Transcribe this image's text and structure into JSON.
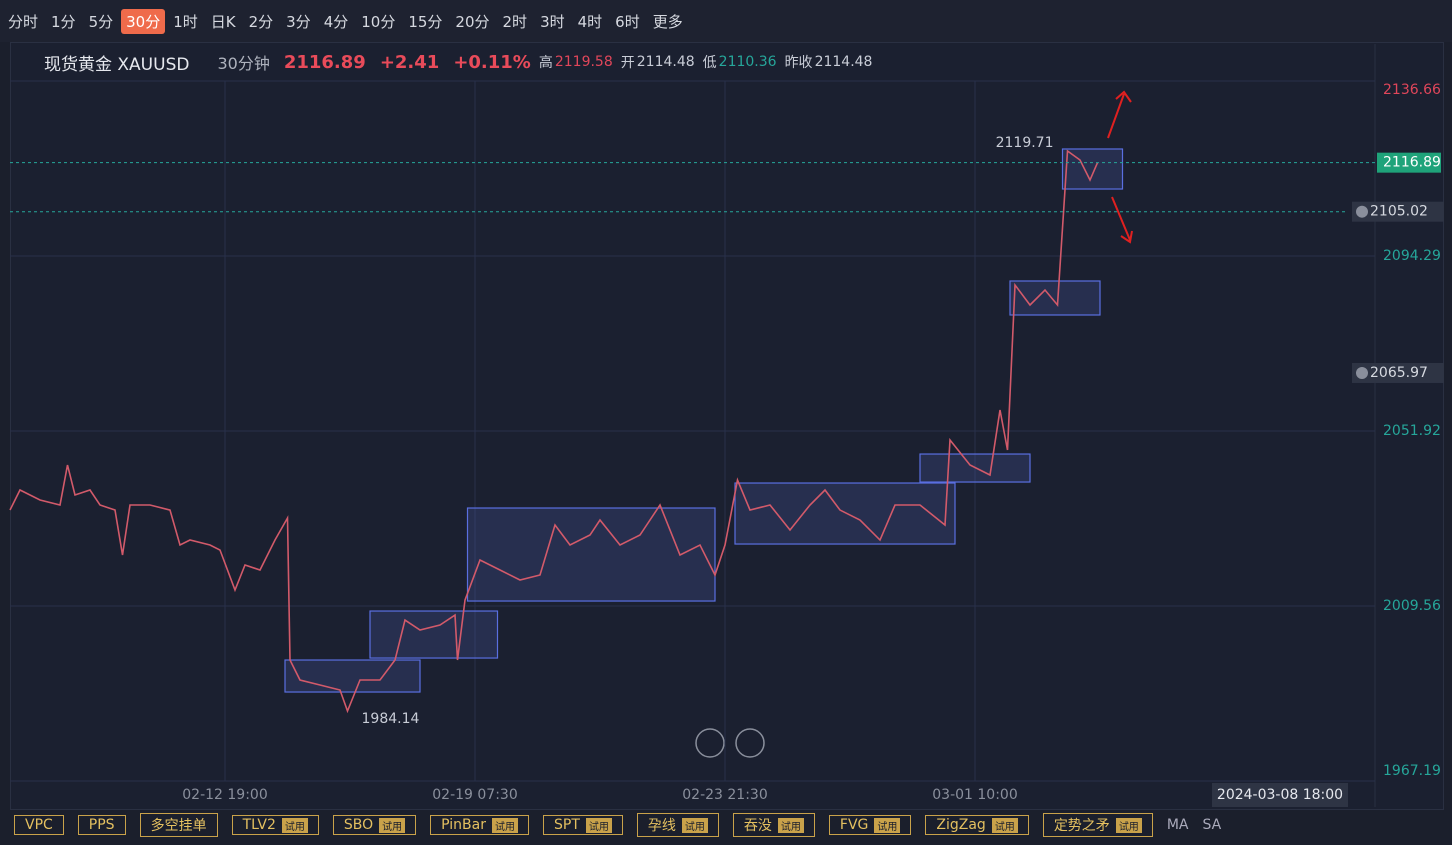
{
  "toolbar": {
    "periods": [
      {
        "text": "分时"
      },
      {
        "text": "1分"
      },
      {
        "text": "5分"
      },
      {
        "text": "30分",
        "active": true
      },
      {
        "text": "1时"
      },
      {
        "text": "日K"
      },
      {
        "text": "2分"
      },
      {
        "text": "3分"
      },
      {
        "text": "4分"
      },
      {
        "text": "10分"
      },
      {
        "text": "15分"
      },
      {
        "text": "20分"
      },
      {
        "text": "2时"
      },
      {
        "text": "3时"
      },
      {
        "text": "4时"
      },
      {
        "text": "6时"
      },
      {
        "text": "更多"
      }
    ]
  },
  "header": {
    "symbol": "现货黄金 XAUUSD",
    "period": "30分钟",
    "price": "2116.89",
    "change": "+2.41",
    "change_pct": "+0.11%",
    "stats": [
      {
        "label": "高",
        "value": "2119.58",
        "color": "#e0465a"
      },
      {
        "label": "开",
        "value": "2114.48",
        "color": "#c8ccd6"
      },
      {
        "label": "低",
        "value": "2110.36",
        "color": "#26a69a"
      },
      {
        "label": "昨收",
        "value": "2114.48",
        "color": "#c8ccd6"
      }
    ]
  },
  "chart_data": {
    "type": "line",
    "color": "#d25a6a",
    "x": [
      0,
      4,
      12,
      20,
      23,
      26,
      32,
      36,
      42,
      45,
      48,
      56,
      64,
      68,
      72,
      80,
      84,
      90,
      94,
      100,
      106,
      111,
      112,
      116,
      124,
      132,
      135,
      140,
      148,
      154,
      158,
      164,
      172,
      178,
      179,
      182,
      188,
      196,
      204,
      212,
      218,
      224,
      232,
      236,
      244,
      252,
      260,
      268,
      276,
      282,
      286,
      291,
      296,
      304,
      312,
      320,
      326,
      332,
      340,
      348,
      354,
      364,
      374,
      376,
      384,
      392,
      396,
      399,
      402,
      408,
      414,
      419,
      423,
      428,
      432,
      435
    ],
    "values": [
      2032.79,
      2037.64,
      2035.22,
      2034.01,
      2043.69,
      2036.43,
      2037.64,
      2034.01,
      2032.79,
      2021.9,
      2034.01,
      2034.01,
      2032.79,
      2024.32,
      2025.53,
      2024.32,
      2023.11,
      2013.43,
      2019.48,
      2018.27,
      2025.53,
      2030.86,
      1996.48,
      1991.64,
      1990.43,
      1989.22,
      1984.14,
      1991.64,
      1991.64,
      1996.48,
      2006.16,
      2003.74,
      2004.95,
      2007.37,
      1996.48,
      2011.0,
      2020.69,
      2018.27,
      2015.85,
      2017.06,
      2029.16,
      2024.32,
      2026.74,
      2030.37,
      2024.32,
      2026.74,
      2034.01,
      2021.9,
      2024.32,
      2017.06,
      2024.32,
      2040.06,
      2032.79,
      2034.01,
      2027.95,
      2034.01,
      2037.64,
      2032.79,
      2030.37,
      2025.53,
      2034.01,
      2034.01,
      2029.16,
      2049.74,
      2043.69,
      2041.27,
      2057.01,
      2047.32,
      2087.27,
      2082.43,
      2086.06,
      2082.43,
      2119.71,
      2117.53,
      2112.69,
      2116.89
    ],
    "xlim": [
      0,
      546
    ],
    "xticks": [
      {
        "value": 86,
        "label": "02-12 19:00"
      },
      {
        "value": 186,
        "label": "02-19 07:30"
      },
      {
        "value": 286,
        "label": "02-23 21:30"
      },
      {
        "value": 386,
        "label": "03-01 10:00"
      }
    ],
    "ylim": [
      1967.19,
      2136.66
    ],
    "yticks": [
      1967.19,
      2009.56,
      2051.92,
      2094.29,
      2136.66
    ],
    "grid": true,
    "last_price": 2116.89,
    "alerts": [
      {
        "value": 2105.02,
        "line": true
      },
      {
        "value": 2065.97,
        "line": false
      }
    ],
    "annotations": [
      {
        "x": 423,
        "value": 2119.71,
        "side": "left"
      },
      {
        "x": 135,
        "value": 1984.14,
        "side": "right"
      }
    ],
    "boxes": [
      {
        "x": [
          110,
          164
        ],
        "y": [
          1988.73,
          1996.48
        ]
      },
      {
        "x": [
          144,
          195
        ],
        "y": [
          1996.96,
          2008.34
        ]
      },
      {
        "x": [
          183,
          282
        ],
        "y": [
          2010.76,
          2033.28
        ]
      },
      {
        "x": [
          290,
          378
        ],
        "y": [
          2024.56,
          2039.33
        ]
      },
      {
        "x": [
          364,
          408
        ],
        "y": [
          2039.57,
          2046.35
        ]
      },
      {
        "x": [
          400,
          436
        ],
        "y": [
          2080.01,
          2088.24
        ]
      },
      {
        "x": [
          421,
          445
        ],
        "y": [
          2110.51,
          2120.2
        ]
      }
    ],
    "crosshair_label": "2024-03-08 18:00"
  },
  "indicators": [
    {
      "name": "VPC"
    },
    {
      "name": "PPS"
    },
    {
      "name": "多空挂单"
    },
    {
      "name": "TLV2",
      "badge": "试用"
    },
    {
      "name": "SBO",
      "badge": "试用"
    },
    {
      "name": "PinBar",
      "badge": "试用"
    },
    {
      "name": "SPT",
      "badge": "试用"
    },
    {
      "name": "孕线",
      "badge": "试用"
    },
    {
      "name": "吞没",
      "badge": "试用"
    },
    {
      "name": "FVG",
      "badge": "试用"
    },
    {
      "name": "ZigZag",
      "badge": "试用"
    },
    {
      "name": "定势之矛",
      "badge": "试用"
    }
  ],
  "tail": [
    "MA",
    "SA"
  ]
}
